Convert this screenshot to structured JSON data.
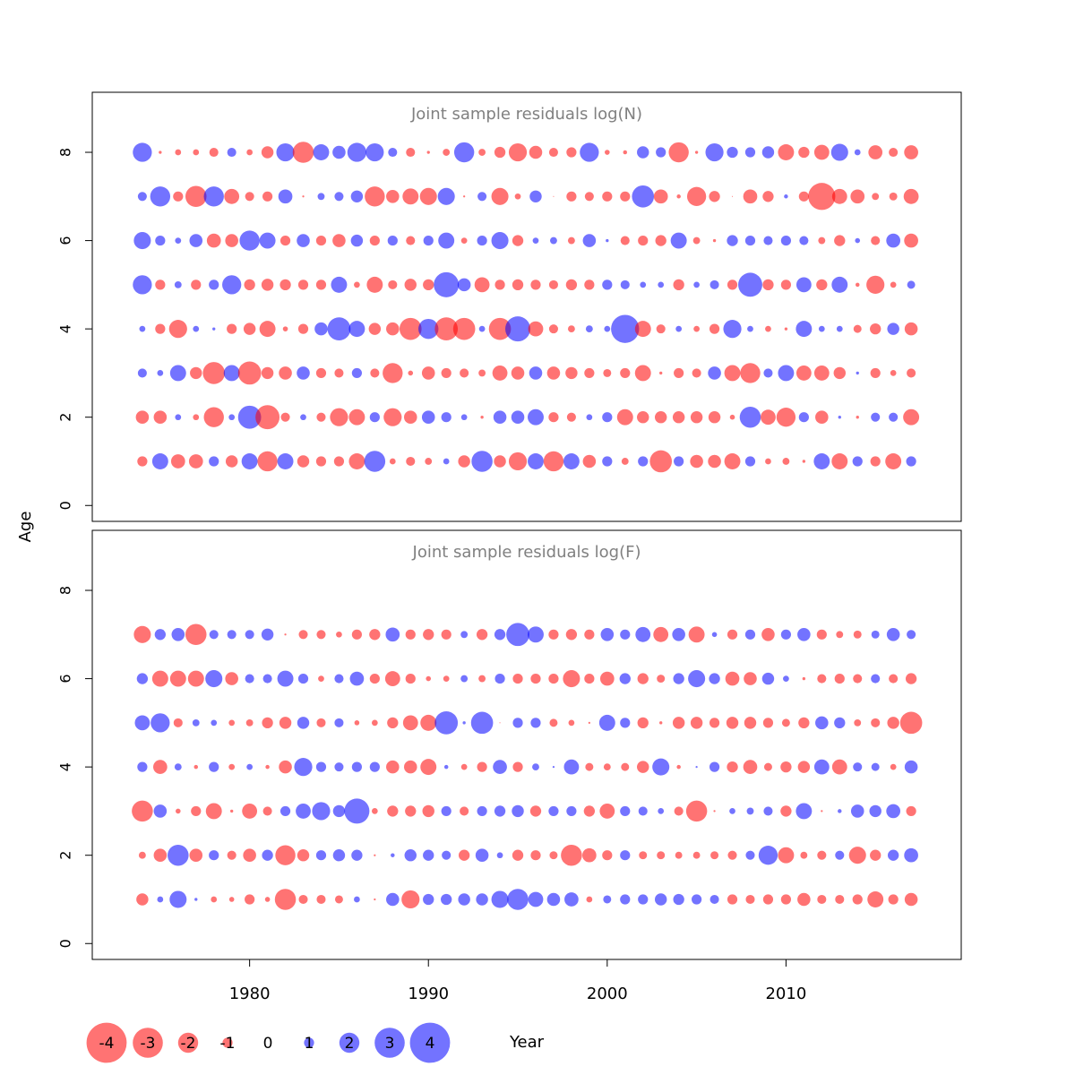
{
  "chart_data": [
    {
      "type": "scatter",
      "subtype": "bubble",
      "title": "Joint sample residuals log(N)",
      "xlabel": "Year",
      "ylabel": "Age",
      "xlim": [
        1971.2,
        2019.8
      ],
      "ylim": [
        -0.36,
        9.36
      ],
      "xticks": [
        1980,
        1990,
        2000,
        2010
      ],
      "yticks": [
        0,
        2,
        4,
        6,
        8
      ],
      "grid": false,
      "years": [
        1974,
        1975,
        1976,
        1977,
        1978,
        1979,
        1980,
        1981,
        1982,
        1983,
        1984,
        1985,
        1986,
        1987,
        1988,
        1989,
        1990,
        1991,
        1992,
        1993,
        1994,
        1995,
        1996,
        1997,
        1998,
        1999,
        2000,
        2001,
        2002,
        2003,
        2004,
        2005,
        2006,
        2007,
        2008,
        2009,
        2010,
        2011,
        2012,
        2013,
        2014,
        2015,
        2016,
        2017
      ],
      "ages": [
        1,
        2,
        3,
        4,
        5,
        6,
        7,
        8
      ],
      "residuals": {
        "1": [
          -1,
          1.6,
          -1.4,
          -1.4,
          1,
          -1.2,
          1.6,
          -2,
          1.6,
          -1.2,
          -1,
          -1,
          -1.6,
          2.1,
          -0.6,
          -0.9,
          -0.7,
          0.6,
          -1.2,
          2.1,
          -1.2,
          -1.8,
          1.6,
          -2,
          1.6,
          -1.3,
          1,
          -0.7,
          1,
          -2.2,
          1,
          -1.3,
          -1.3,
          -1.6,
          1,
          -0.6,
          -0.7,
          -0.3,
          1.6,
          -1.6,
          1,
          -1,
          -1.6,
          1
        ],
        "2": [
          -1.3,
          -1.3,
          0.6,
          -0.6,
          -2,
          0.6,
          2.3,
          -2.4,
          -0.9,
          0.6,
          -0.9,
          -1.8,
          -1.6,
          1,
          -1.8,
          -1.3,
          1.3,
          1,
          0.6,
          -0.3,
          1.3,
          1.3,
          1.6,
          -1,
          -0.9,
          0.6,
          1,
          -1.6,
          -1.2,
          -1.2,
          -1.2,
          -1.2,
          -1.2,
          -0.5,
          2.1,
          -1.5,
          -1.9,
          1,
          -1.3,
          0.3,
          -0.3,
          0.9,
          0.9,
          -1.6
        ],
        "3": [
          0.9,
          0.6,
          1.6,
          -1.2,
          -2.2,
          1.6,
          -2.3,
          -1.2,
          -1.3,
          1.3,
          -1,
          -0.9,
          1,
          -0.9,
          -2,
          -0.5,
          -1.3,
          -1,
          -0.9,
          -0.7,
          -1.5,
          -1.3,
          1.3,
          -1.3,
          -1.2,
          -1,
          -0.8,
          -1,
          -1.6,
          -0.3,
          -1,
          -0.9,
          1.3,
          -1.6,
          -2,
          0.9,
          1.6,
          -1.5,
          -1.5,
          -1.2,
          0.3,
          -1,
          -0.6,
          -0.9
        ],
        "4": [
          0.6,
          -1,
          -1.8,
          0.6,
          0.3,
          -1,
          -1.2,
          -1.6,
          -0.5,
          -1,
          1.3,
          2.3,
          1.6,
          -1.2,
          -1.3,
          -2.2,
          2,
          -2.3,
          -2.2,
          0.6,
          -2.2,
          2.5,
          -1.5,
          -0.9,
          -0.7,
          0.7,
          0.6,
          2.8,
          -1.6,
          -0.9,
          0.6,
          -0.6,
          -1,
          1.8,
          0.6,
          -0.6,
          -0.3,
          1.6,
          0.6,
          0.6,
          -0.8,
          -1.1,
          1.2,
          -1.3
        ],
        "5": [
          1.9,
          -1,
          0.7,
          -1,
          1,
          1.9,
          -1.1,
          -1.2,
          -1.1,
          -1,
          -1,
          1.6,
          -0.6,
          -1.6,
          -0.9,
          -1.2,
          -1.1,
          2.5,
          1.3,
          -1.5,
          -1,
          -1.1,
          -1,
          -0.9,
          -1.1,
          -1,
          1,
          0.9,
          0.6,
          0.6,
          -1.1,
          0.6,
          0.9,
          -1,
          2.4,
          -1.1,
          -1,
          1.5,
          -1.1,
          1.6,
          -0.4,
          -1.8,
          -0.6,
          0.8
        ],
        "6": [
          1.7,
          1,
          0.6,
          1.3,
          -1.4,
          -1.3,
          2,
          1.6,
          -1,
          1.3,
          -1,
          -1.3,
          1.2,
          -1,
          1,
          -0.9,
          1,
          1.6,
          -0.6,
          1,
          1.7,
          -1.1,
          0.6,
          0.7,
          -0.7,
          1.3,
          0.3,
          -0.9,
          -1,
          -1.1,
          1.6,
          -0.7,
          -0.3,
          1.1,
          1,
          0.9,
          1,
          0.9,
          -0.7,
          -1.1,
          0.5,
          -0.9,
          1.4,
          -1.4
        ],
        "7": [
          0.9,
          2,
          -1,
          -2.1,
          2,
          -1.5,
          -0.9,
          -1,
          1.4,
          -0.2,
          0.7,
          0.9,
          1.2,
          -2,
          -1.3,
          -1.6,
          -1.7,
          1.7,
          -0.2,
          0.9,
          -1.7,
          -0.6,
          1.2,
          -0.1,
          -1,
          -0.9,
          -1,
          -1,
          2.2,
          -1.4,
          -0.4,
          -1.9,
          -1.1,
          -0.1,
          -1.4,
          -1.1,
          0.4,
          -1,
          -2.7,
          -1.5,
          -1.4,
          -0.7,
          -0.8,
          -1.5
        ],
        "8": [
          1.9,
          -0.3,
          -0.6,
          -0.6,
          -0.9,
          0.9,
          -0.6,
          -1.2,
          1.8,
          -2.1,
          1.6,
          1.3,
          1.9,
          1.8,
          0.9,
          -0.9,
          -0.3,
          -0.7,
          2,
          -0.7,
          -1.1,
          -1.8,
          -1.3,
          -0.9,
          -1,
          1.9,
          -0.5,
          -0.4,
          1.2,
          1,
          -2,
          -0.3,
          1.8,
          1.1,
          1,
          1.2,
          -1.6,
          -1.1,
          -1.5,
          1.7,
          0.6,
          -1.4,
          -0.9,
          -1.4
        ]
      }
    },
    {
      "type": "scatter",
      "subtype": "bubble",
      "title": "Joint sample residuals log(F)",
      "xlabel": "Year",
      "ylabel": "Age",
      "xlim": [
        1971.2,
        2019.8
      ],
      "ylim": [
        -0.36,
        9.36
      ],
      "xticks": [
        1980,
        1990,
        2000,
        2010
      ],
      "yticks": [
        0,
        2,
        4,
        6,
        8
      ],
      "grid": false,
      "years": [
        1974,
        1975,
        1976,
        1977,
        1978,
        1979,
        1980,
        1981,
        1982,
        1983,
        1984,
        1985,
        1986,
        1987,
        1988,
        1989,
        1990,
        1991,
        1992,
        1993,
        1994,
        1995,
        1996,
        1997,
        1998,
        1999,
        2000,
        2001,
        2002,
        2003,
        2004,
        2005,
        2006,
        2007,
        2008,
        2009,
        2010,
        2011,
        2012,
        2013,
        2014,
        2015,
        2016,
        2017
      ],
      "ages": [
        1,
        2,
        3,
        4,
        5,
        6,
        7
      ],
      "residuals": {
        "1": [
          -1.2,
          0.6,
          1.7,
          0.3,
          -0.6,
          -0.5,
          -1,
          -0.5,
          -2.1,
          -0.9,
          -0.9,
          -0.8,
          0.6,
          -0.2,
          1.3,
          -1.8,
          1.1,
          1.1,
          1.2,
          1.2,
          1.7,
          2.1,
          1.5,
          1.3,
          1.4,
          -0.6,
          0.8,
          1,
          1,
          1.2,
          1.1,
          1,
          0.9,
          -1,
          -0.9,
          -1,
          -1,
          -1.3,
          -0.9,
          -0.9,
          -1,
          -1.6,
          -1,
          -1.3
        ],
        "2": [
          -0.7,
          -1.3,
          2.1,
          -1.3,
          1,
          -0.9,
          -1.3,
          1.1,
          -2,
          -1.2,
          1,
          1.2,
          1.1,
          -0.2,
          0.4,
          1.2,
          1.1,
          0.9,
          -1.1,
          1.3,
          0.6,
          -1.1,
          -1,
          -0.8,
          -2.1,
          -1.4,
          -1,
          1,
          -0.8,
          -0.8,
          -0.7,
          -0.7,
          -0.8,
          -0.9,
          0.9,
          1.9,
          -1.6,
          -0.7,
          -0.9,
          0.9,
          -1.7,
          -1.1,
          1.1,
          1.4
        ],
        "3": [
          -2.1,
          1.3,
          -0.5,
          -1,
          -1.6,
          -0.3,
          -1.5,
          -0.9,
          1,
          1.5,
          1.8,
          1.2,
          2.5,
          -0.6,
          -1.1,
          -1.1,
          -1.2,
          1,
          -0.9,
          1,
          1.1,
          1.2,
          -1.1,
          1,
          1,
          -1.1,
          -1.5,
          1,
          0.9,
          0.6,
          -0.9,
          -2.1,
          -0.2,
          0.6,
          0.7,
          0.9,
          -1.1,
          1.6,
          -0.2,
          0.4,
          1.3,
          1.2,
          1.4,
          -1
        ],
        "4": [
          1,
          -1.4,
          0.7,
          -0.4,
          1,
          -0.6,
          0.6,
          -0.4,
          -1.3,
          1.8,
          1,
          0.9,
          1,
          1,
          -1.3,
          -1.3,
          -1.6,
          0.4,
          -0.6,
          -1,
          1.4,
          -1,
          0.7,
          0.2,
          1.5,
          -0.8,
          -0.7,
          -0.8,
          -1.2,
          1.7,
          -0.4,
          0.2,
          1,
          -1.1,
          -1.4,
          -0.8,
          -1.1,
          -1.2,
          1.5,
          -1.5,
          0.9,
          0.8,
          -0.6,
          1.3
        ],
        "5": [
          1.5,
          1.9,
          -0.9,
          0.7,
          0.6,
          -0.6,
          -0.7,
          -1.1,
          -1.2,
          1.2,
          -0.9,
          0.9,
          -0.5,
          -0.6,
          -1.1,
          -1.5,
          -1.6,
          2.3,
          0.3,
          2.2,
          -0.1,
          1,
          1,
          -0.8,
          -0.6,
          -0.2,
          1.6,
          1,
          -1.1,
          -0.3,
          -1.2,
          -1.2,
          -1,
          -1.2,
          -1.2,
          -1,
          -0.8,
          -1.1,
          1.3,
          1.1,
          -0.7,
          -0.9,
          -1.2,
          -2.2
        ],
        "6": [
          1.1,
          -1.6,
          -1.6,
          -1.6,
          1.7,
          -1.3,
          0.9,
          0.9,
          1.6,
          1,
          -0.6,
          0.9,
          1.4,
          -1,
          -1.5,
          -1,
          -0.5,
          -0.6,
          0.7,
          -0.7,
          1,
          -1,
          -1,
          -1,
          -1.7,
          -1,
          -1.4,
          1.1,
          -1.1,
          -0.8,
          1.1,
          1.7,
          1.1,
          -1.4,
          -1.3,
          1.2,
          0.6,
          -0.3,
          -0.9,
          -1,
          -0.9,
          0.9,
          -0.9,
          -1.1
        ],
        "7": [
          -1.7,
          1.1,
          1.3,
          -2.1,
          0.9,
          0.9,
          0.9,
          1.2,
          -0.2,
          -0.9,
          -0.9,
          -0.6,
          -1,
          -1.1,
          1.4,
          -1,
          -1.1,
          -1,
          0.7,
          -1.1,
          1.1,
          2.3,
          1.6,
          -1,
          -1.1,
          -1,
          1.3,
          1,
          1.5,
          -1.5,
          1.3,
          -1.6,
          0.5,
          -1,
          1,
          -1.3,
          1,
          1.3,
          -1,
          -0.7,
          -0.8,
          0.8,
          1.3,
          0.9
        ]
      }
    }
  ],
  "legend": {
    "placement": "bottom-left",
    "items": [
      {
        "label": "-4",
        "value": -4
      },
      {
        "label": "-3",
        "value": -3
      },
      {
        "label": "-2",
        "value": -2
      },
      {
        "label": "-1",
        "value": -1
      },
      {
        "label": "0",
        "value": 0
      },
      {
        "label": "1",
        "value": 1
      },
      {
        "label": "2",
        "value": 2
      },
      {
        "label": "3",
        "value": 3
      },
      {
        "label": "4",
        "value": 4
      }
    ]
  },
  "axis_labels": {
    "x": "Year",
    "y": "Age"
  },
  "colors": {
    "negative": "#ff0000",
    "positive": "#0000ff",
    "title": "#808080",
    "axis": "#000000"
  }
}
